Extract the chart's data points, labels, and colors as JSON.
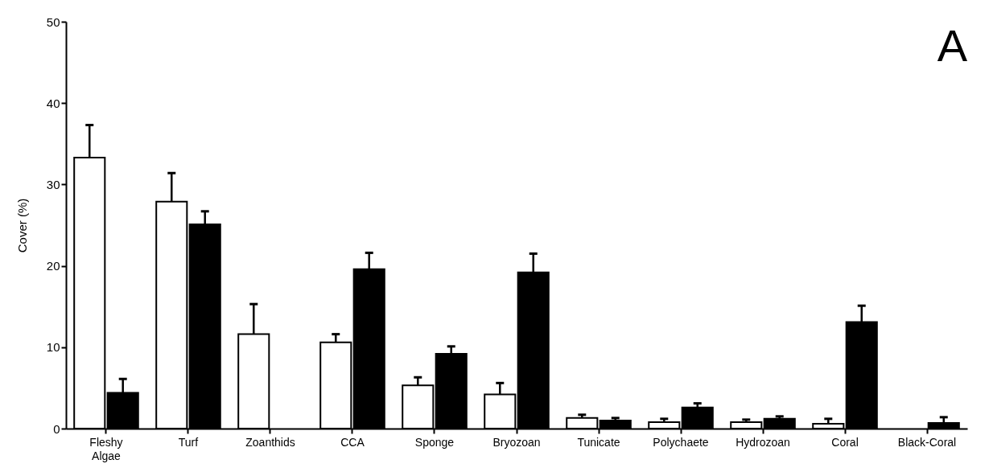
{
  "chart_data": {
    "type": "bar",
    "ylabel": "Cover (%)",
    "annotations": [
      "A"
    ],
    "categories": [
      "Fleshy Algae",
      "Turf",
      "Zoanthids",
      "CCA",
      "Sponge",
      "Bryozoan",
      "Tunicate",
      "Polychaete",
      "Hydrozoan",
      "Coral",
      "Black-Coral"
    ],
    "series": [
      {
        "color": "#ffffff",
        "values": [
          33.3,
          27.9,
          11.6,
          10.6,
          5.3,
          4.2,
          1.3,
          0.8,
          0.8,
          0.6,
          null
        ],
        "errors": [
          4.0,
          3.5,
          3.7,
          1.0,
          1.0,
          1.4,
          0.4,
          0.4,
          0.3,
          0.6,
          null
        ]
      },
      {
        "color": "#000000",
        "values": [
          4.4,
          25.1,
          null,
          19.6,
          9.2,
          19.2,
          1.0,
          2.6,
          1.2,
          13.1,
          0.7
        ],
        "errors": [
          1.7,
          1.6,
          null,
          2.0,
          0.9,
          2.3,
          0.3,
          0.5,
          0.3,
          2.0,
          0.7
        ]
      }
    ],
    "ylim": [
      0,
      50
    ],
    "yticks": [
      0,
      10,
      20,
      30,
      40,
      50
    ],
    "grid": false,
    "legend": false
  }
}
